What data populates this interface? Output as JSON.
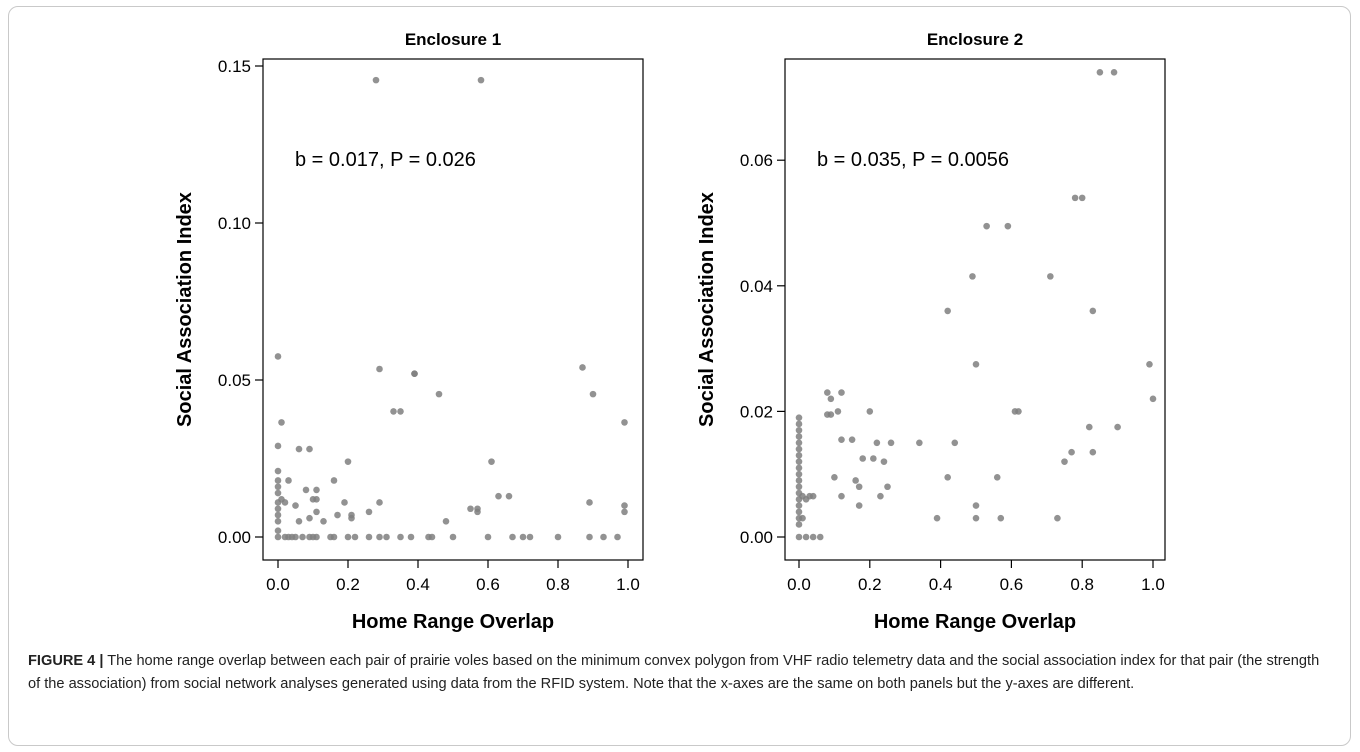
{
  "chart_data": [
    {
      "type": "scatter",
      "title": "Enclosure 1",
      "xlabel": "Home Range Overlap",
      "ylabel": "Social Association Index",
      "xlim": [
        0,
        1
      ],
      "ylim": [
        0,
        0.15
      ],
      "xticks": [
        "0.0",
        "0.2",
        "0.4",
        "0.6",
        "0.8",
        "1.0"
      ],
      "yticks": [
        "0.00",
        "0.05",
        "0.10",
        "0.15"
      ],
      "xtick_values": [
        0,
        0.2,
        0.4,
        0.6,
        0.8,
        1.0
      ],
      "ytick_values": [
        0,
        0.05,
        0.1,
        0.15
      ],
      "annotation": "b = 0.017, P = 0.026",
      "point_color": "#7f7f7f",
      "grid": false,
      "points": [
        [
          0.28,
          0.1455
        ],
        [
          0.58,
          0.1455
        ],
        [
          0.0,
          0.0575
        ],
        [
          0.0,
          0.029
        ],
        [
          0.0,
          0.021
        ],
        [
          0.0,
          0.018
        ],
        [
          0.0,
          0.016
        ],
        [
          0.0,
          0.014
        ],
        [
          0.0,
          0.011
        ],
        [
          0.0,
          0.009
        ],
        [
          0.0,
          0.007
        ],
        [
          0.0,
          0.005
        ],
        [
          0.0,
          0.002
        ],
        [
          0.0,
          0.0
        ],
        [
          0.01,
          0.0365
        ],
        [
          0.01,
          0.012
        ],
        [
          0.02,
          0.011
        ],
        [
          0.02,
          0.0
        ],
        [
          0.03,
          0.0
        ],
        [
          0.03,
          0.018
        ],
        [
          0.04,
          0.0
        ],
        [
          0.05,
          0.01
        ],
        [
          0.05,
          0.0
        ],
        [
          0.06,
          0.028
        ],
        [
          0.06,
          0.005
        ],
        [
          0.07,
          0.0
        ],
        [
          0.08,
          0.015
        ],
        [
          0.09,
          0.028
        ],
        [
          0.09,
          0.006
        ],
        [
          0.09,
          0.0
        ],
        [
          0.1,
          0.012
        ],
        [
          0.1,
          0.0
        ],
        [
          0.11,
          0.015
        ],
        [
          0.11,
          0.012
        ],
        [
          0.11,
          0.008
        ],
        [
          0.11,
          0.0
        ],
        [
          0.13,
          0.005
        ],
        [
          0.15,
          0.0
        ],
        [
          0.16,
          0.018
        ],
        [
          0.16,
          0.0
        ],
        [
          0.17,
          0.007
        ],
        [
          0.19,
          0.011
        ],
        [
          0.2,
          0.024
        ],
        [
          0.2,
          0.0
        ],
        [
          0.21,
          0.007
        ],
        [
          0.21,
          0.006
        ],
        [
          0.22,
          0.0
        ],
        [
          0.26,
          0.008
        ],
        [
          0.26,
          0.0
        ],
        [
          0.29,
          0.0535
        ],
        [
          0.29,
          0.011
        ],
        [
          0.29,
          0.0
        ],
        [
          0.31,
          0.0
        ],
        [
          0.33,
          0.04
        ],
        [
          0.35,
          0.04
        ],
        [
          0.35,
          0.0
        ],
        [
          0.38,
          0.0
        ],
        [
          0.39,
          0.052
        ],
        [
          0.39,
          0.052
        ],
        [
          0.43,
          0.0
        ],
        [
          0.44,
          0.0
        ],
        [
          0.46,
          0.0455
        ],
        [
          0.48,
          0.005
        ],
        [
          0.5,
          0.0
        ],
        [
          0.55,
          0.009
        ],
        [
          0.57,
          0.009
        ],
        [
          0.57,
          0.008
        ],
        [
          0.6,
          0.0
        ],
        [
          0.61,
          0.024
        ],
        [
          0.63,
          0.013
        ],
        [
          0.66,
          0.013
        ],
        [
          0.67,
          0.0
        ],
        [
          0.7,
          0.0
        ],
        [
          0.72,
          0.0
        ],
        [
          0.8,
          0.0
        ],
        [
          0.87,
          0.054
        ],
        [
          0.89,
          0.011
        ],
        [
          0.89,
          0.0
        ],
        [
          0.9,
          0.0455
        ],
        [
          0.93,
          0.0
        ],
        [
          0.97,
          0.0
        ],
        [
          0.99,
          0.0365
        ],
        [
          0.99,
          0.01
        ],
        [
          0.99,
          0.008
        ]
      ]
    },
    {
      "type": "scatter",
      "title": "Enclosure 2",
      "xlabel": "Home Range Overlap",
      "ylabel": "Social Association Index",
      "xlim": [
        0,
        1
      ],
      "ylim": [
        0,
        0.075
      ],
      "xticks": [
        "0.0",
        "0.2",
        "0.4",
        "0.6",
        "0.8",
        "1.0"
      ],
      "yticks": [
        "0.00",
        "0.02",
        "0.04",
        "0.06"
      ],
      "xtick_values": [
        0,
        0.2,
        0.4,
        0.6,
        0.8,
        1.0
      ],
      "ytick_values": [
        0,
        0.02,
        0.04,
        0.06
      ],
      "annotation": "b = 0.035, P = 0.0056",
      "point_color": "#7f7f7f",
      "grid": false,
      "points": [
        [
          0.0,
          0.019
        ],
        [
          0.0,
          0.018
        ],
        [
          0.0,
          0.017
        ],
        [
          0.0,
          0.016
        ],
        [
          0.0,
          0.015
        ],
        [
          0.0,
          0.014
        ],
        [
          0.0,
          0.013
        ],
        [
          0.0,
          0.012
        ],
        [
          0.0,
          0.011
        ],
        [
          0.0,
          0.01
        ],
        [
          0.0,
          0.009
        ],
        [
          0.0,
          0.008
        ],
        [
          0.0,
          0.007
        ],
        [
          0.0,
          0.006
        ],
        [
          0.0,
          0.005
        ],
        [
          0.0,
          0.004
        ],
        [
          0.0,
          0.003
        ],
        [
          0.0,
          0.002
        ],
        [
          0.0,
          0.0
        ],
        [
          0.01,
          0.0065
        ],
        [
          0.01,
          0.003
        ],
        [
          0.02,
          0.006
        ],
        [
          0.02,
          0.0
        ],
        [
          0.03,
          0.0065
        ],
        [
          0.04,
          0.0065
        ],
        [
          0.04,
          0.0
        ],
        [
          0.06,
          0.0
        ],
        [
          0.08,
          0.023
        ],
        [
          0.08,
          0.0195
        ],
        [
          0.09,
          0.022
        ],
        [
          0.09,
          0.0195
        ],
        [
          0.1,
          0.0095
        ],
        [
          0.11,
          0.02
        ],
        [
          0.12,
          0.023
        ],
        [
          0.12,
          0.0155
        ],
        [
          0.12,
          0.0065
        ],
        [
          0.15,
          0.0155
        ],
        [
          0.16,
          0.009
        ],
        [
          0.17,
          0.008
        ],
        [
          0.17,
          0.005
        ],
        [
          0.18,
          0.0125
        ],
        [
          0.2,
          0.02
        ],
        [
          0.21,
          0.0125
        ],
        [
          0.22,
          0.015
        ],
        [
          0.23,
          0.0065
        ],
        [
          0.24,
          0.012
        ],
        [
          0.25,
          0.008
        ],
        [
          0.26,
          0.015
        ],
        [
          0.34,
          0.015
        ],
        [
          0.39,
          0.003
        ],
        [
          0.42,
          0.036
        ],
        [
          0.42,
          0.0095
        ],
        [
          0.44,
          0.015
        ],
        [
          0.49,
          0.0415
        ],
        [
          0.5,
          0.0275
        ],
        [
          0.5,
          0.005
        ],
        [
          0.5,
          0.003
        ],
        [
          0.53,
          0.0495
        ],
        [
          0.56,
          0.0095
        ],
        [
          0.57,
          0.003
        ],
        [
          0.59,
          0.0495
        ],
        [
          0.61,
          0.02
        ],
        [
          0.62,
          0.02
        ],
        [
          0.71,
          0.0415
        ],
        [
          0.73,
          0.003
        ],
        [
          0.75,
          0.012
        ],
        [
          0.77,
          0.0135
        ],
        [
          0.78,
          0.054
        ],
        [
          0.8,
          0.054
        ],
        [
          0.82,
          0.0175
        ],
        [
          0.83,
          0.036
        ],
        [
          0.83,
          0.0135
        ],
        [
          0.85,
          0.074
        ],
        [
          0.89,
          0.074
        ],
        [
          0.9,
          0.0175
        ],
        [
          0.99,
          0.0275
        ],
        [
          1.0,
          0.022
        ]
      ]
    }
  ],
  "caption": {
    "label": "FIGURE 4 |",
    "text": " The home range overlap between each pair of prairie voles based on the minimum convex polygon from VHF radio telemetry data and the social association index for that pair (the strength of the association) from social network analyses generated using data from the RFID system. Note that the x-axes are the same on both panels but the y-axes are different."
  }
}
